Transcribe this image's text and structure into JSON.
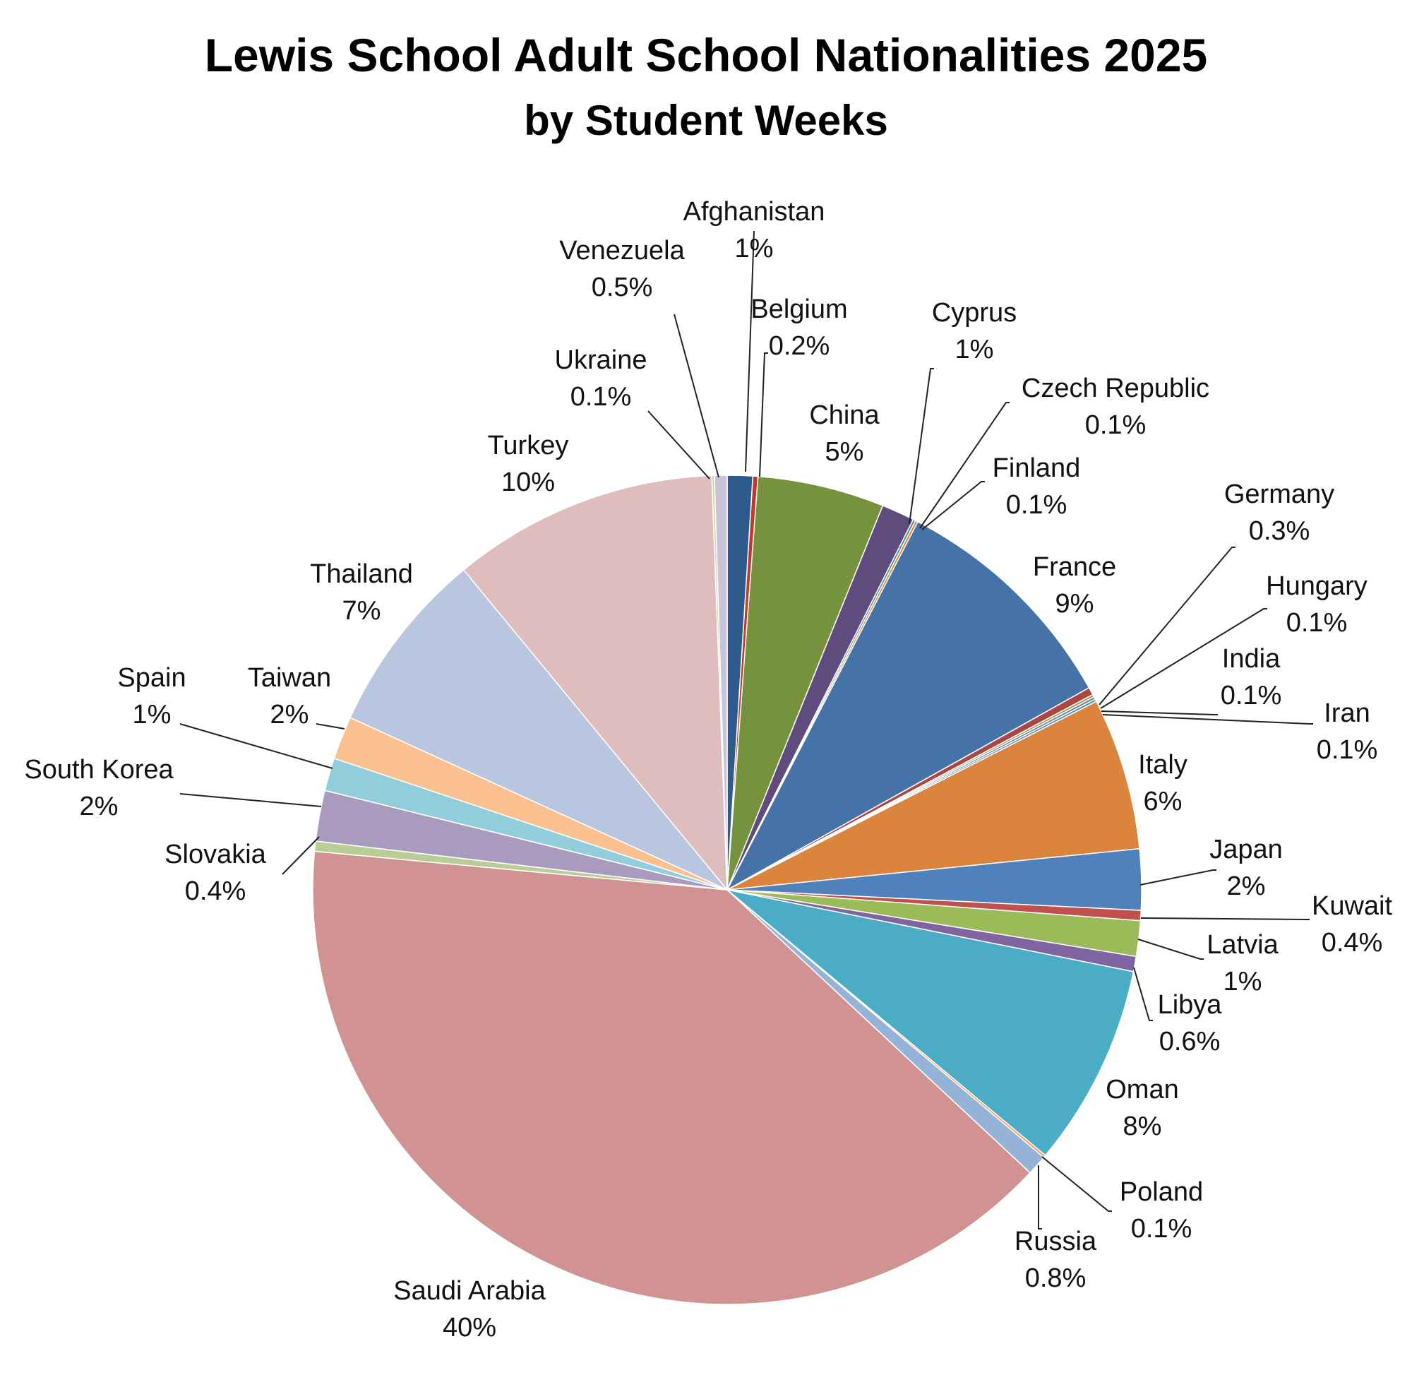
{
  "chart_data": {
    "type": "pie",
    "title": "Lewis School Adult School Nationalities 2025",
    "subtitle": "by Student Weeks",
    "slices": [
      {
        "label": "Afghanistan",
        "pct": "1%",
        "value": 1.0,
        "color": "#2E5A8C"
      },
      {
        "label": "Belgium",
        "pct": "0.2%",
        "value": 0.2,
        "color": "#C0392B"
      },
      {
        "label": "China",
        "pct": "5%",
        "value": 5.0,
        "color": "#76923C"
      },
      {
        "label": "Cyprus",
        "pct": "1%",
        "value": 1.3,
        "color": "#5F4B7E"
      },
      {
        "label": "Czech Republic",
        "pct": "0.1%",
        "value": 0.1,
        "color": "#3B8EA5"
      },
      {
        "label": "Finland",
        "pct": "0.1%",
        "value": 0.1,
        "color": "#E67E22"
      },
      {
        "label": "France",
        "pct": "9%",
        "value": 9.4,
        "color": "#4572A7"
      },
      {
        "label": "Germany",
        "pct": "0.3%",
        "value": 0.3,
        "color": "#AA4643"
      },
      {
        "label": "Hungary",
        "pct": "0.1%",
        "value": 0.1,
        "color": "#89A54E"
      },
      {
        "label": "India",
        "pct": "0.1%",
        "value": 0.1,
        "color": "#80699B"
      },
      {
        "label": "Iran",
        "pct": "0.1%",
        "value": 0.1,
        "color": "#3D96AE"
      },
      {
        "label": "Italy",
        "pct": "6%",
        "value": 6.0,
        "color": "#DB843D"
      },
      {
        "label": "Japan",
        "pct": "2%",
        "value": 2.4,
        "color": "#4F81BD"
      },
      {
        "label": "Kuwait",
        "pct": "0.4%",
        "value": 0.4,
        "color": "#C0504D"
      },
      {
        "label": "Latvia",
        "pct": "1%",
        "value": 1.4,
        "color": "#9BBB59"
      },
      {
        "label": "Libya",
        "pct": "0.6%",
        "value": 0.6,
        "color": "#8064A2"
      },
      {
        "label": "Oman",
        "pct": "8%",
        "value": 8.0,
        "color": "#4BACC6"
      },
      {
        "label": "Poland",
        "pct": "0.1%",
        "value": 0.1,
        "color": "#F79646"
      },
      {
        "label": "Russia",
        "pct": "0.8%",
        "value": 0.8,
        "color": "#95B3D7"
      },
      {
        "label": "Saudi Arabia",
        "pct": "40%",
        "value": 40.0,
        "color": "#D19392"
      },
      {
        "label": "Slovakia",
        "pct": "0.4%",
        "value": 0.4,
        "color": "#B9CD96"
      },
      {
        "label": "South Korea",
        "pct": "2%",
        "value": 2.0,
        "color": "#A99BBD"
      },
      {
        "label": "Spain",
        "pct": "1%",
        "value": 1.3,
        "color": "#92CDDC"
      },
      {
        "label": "Taiwan",
        "pct": "2%",
        "value": 1.7,
        "color": "#FAC08F"
      },
      {
        "label": "Thailand",
        "pct": "7%",
        "value": 7.3,
        "color": "#B9C6E0"
      },
      {
        "label": "Turkey",
        "pct": "10%",
        "value": 10.5,
        "color": "#DFBDBD"
      },
      {
        "label": "Ukraine",
        "pct": "0.1%",
        "value": 0.1,
        "color": "#C6D9A0"
      },
      {
        "label": "Venezuela",
        "pct": "0.5%",
        "value": 0.5,
        "color": "#C9C3D8"
      }
    ]
  }
}
